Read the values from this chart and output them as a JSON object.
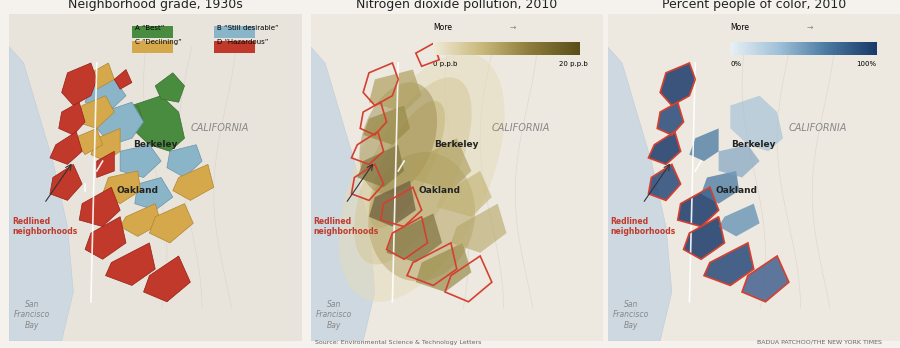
{
  "title1": "Neighborhood grade, 1930s",
  "title2": "Nitrogen dioxide pollution, 2010",
  "title3": "Percent people of color, 2010",
  "legend1_items": [
    {
      "label": "A “Best”",
      "color": "#4a8c3f"
    },
    {
      "label": "B “Still desirable”",
      "color": "#8ab4c8"
    },
    {
      "label": "C “Declining”",
      "color": "#d4a84b"
    },
    {
      "label": "D “Hazardous”",
      "color": "#c0392b"
    }
  ],
  "legend2_label": "More",
  "legend2_min": "0 p.p.b",
  "legend2_max": "20 p.p.b",
  "legend3_label": "More",
  "legend3_min": "0%",
  "legend3_max": "100%",
  "redlined_label": "Redlined\nneighborhoods",
  "source": "Source: Environmental Science & Technology Letters",
  "credit": "BADUA PATCHOO/THE NEW YORK TIMES",
  "bg_color": "#f0ece4",
  "map_bg": "#e8e0d0",
  "water_color": "#d0dce8",
  "california_label": "CALIFORNIA",
  "berkeley_label": "Berkeley",
  "oakland_label": "Oakland",
  "sf_bay_label": "San\nFrancisco\nBay",
  "title_fontsize": 9,
  "body_fontsize": 7,
  "panel_bg": "#f5f2ee"
}
